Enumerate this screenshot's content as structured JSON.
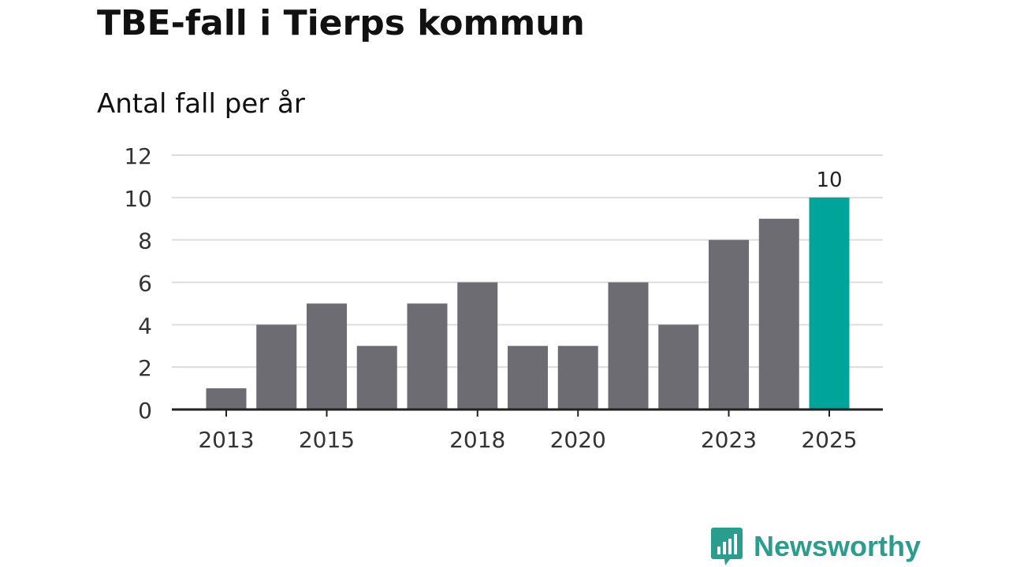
{
  "header": {
    "title": "TBE-fall i Tierps kommun",
    "subtitle": "Antal fall per år"
  },
  "brand": {
    "name": "Newsworthy",
    "color": "#2a9d8f",
    "icon": "bar-chart-speech-bubble-icon"
  },
  "colors": {
    "bar": "#6d6c72",
    "highlight": "#00a499",
    "grid": "#dddddd",
    "axis": "#222222"
  },
  "chart_data": {
    "type": "bar",
    "categories": [
      "2013",
      "2014",
      "2015",
      "2016",
      "2017",
      "2018",
      "2019",
      "2020",
      "2021",
      "2022",
      "2023",
      "2024",
      "2025"
    ],
    "values": [
      1,
      4,
      5,
      3,
      5,
      6,
      3,
      3,
      6,
      4,
      8,
      9,
      10
    ],
    "x_tick_labels": [
      "2013",
      "2015",
      "2018",
      "2020",
      "2023",
      "2025"
    ],
    "y_ticks": [
      0,
      2,
      4,
      6,
      8,
      10,
      12
    ],
    "ylim": [
      0,
      12
    ],
    "highlight_category": "2025",
    "data_labels": [
      {
        "category": "2025",
        "label": "10"
      }
    ],
    "grid": true,
    "legend": "none",
    "title": "TBE-fall i Tierps kommun",
    "ylabel": "Antal fall per år",
    "xlabel": ""
  }
}
